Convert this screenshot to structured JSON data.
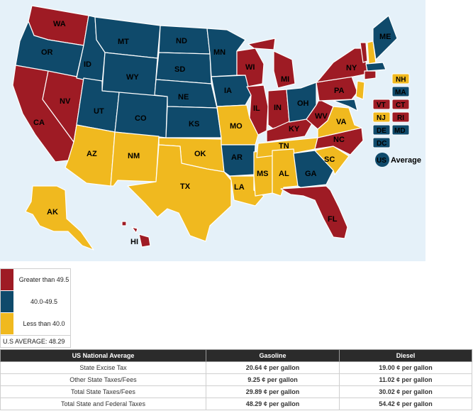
{
  "colors": {
    "high": "#9e1b24",
    "mid": "#0f4a6b",
    "low": "#f0b91f",
    "ocean": "#e5f1f9"
  },
  "states": {
    "WA": "WA",
    "OR": "OR",
    "CA": "CA",
    "NV": "NV",
    "ID": "ID",
    "MT": "MT",
    "WY": "WY",
    "UT": "UT",
    "AZ": "AZ",
    "CO": "CO",
    "NM": "NM",
    "ND": "ND",
    "SD": "SD",
    "NE": "NE",
    "KS": "KS",
    "OK": "OK",
    "TX": "TX",
    "MN": "MN",
    "IA": "IA",
    "MO": "MO",
    "AR": "AR",
    "LA": "LA",
    "WI": "WI",
    "IL": "IL",
    "MS": "MS",
    "MI": "MI",
    "IN": "IN",
    "KY": "KY",
    "TN": "TN",
    "AL": "AL",
    "OH": "OH",
    "WV": "WV",
    "GA": "GA",
    "FL": "FL",
    "SC": "SC",
    "NC": "NC",
    "VA": "VA",
    "PA": "PA",
    "NY": "NY",
    "ME": "ME",
    "AK": "AK",
    "HI": "HI"
  },
  "small_states": {
    "NH": "NH",
    "MA": "MA",
    "VT": "VT",
    "CT": "CT",
    "NJ": "NJ",
    "RI": "RI",
    "DE": "DE",
    "MD": "MD",
    "DC": "DC"
  },
  "us_average_badge": "US",
  "us_average_label": "Average",
  "legend": {
    "high_label": "Greater than 49.5",
    "mid_label": "40.0-49.5",
    "low_label": "Less than 40.0",
    "average": "U.S AVERAGE: 48.29"
  },
  "table": {
    "headers": [
      "US National Average",
      "Gasoline",
      "Diesel"
    ],
    "rows": [
      [
        "State Excise Tax",
        "20.64 ¢ per gallon",
        "19.00 ¢ per gallon"
      ],
      [
        "Other State Taxes/Fees",
        "9.25 ¢ per gallon",
        "11.02 ¢ per gallon"
      ],
      [
        "Total State Taxes/Fees",
        "29.89 ¢ per gallon",
        "30.02 ¢ per gallon"
      ],
      [
        "Total State and Federal Taxes",
        "48.29 ¢ per gallon",
        "54.42 ¢ per gallon"
      ]
    ]
  }
}
